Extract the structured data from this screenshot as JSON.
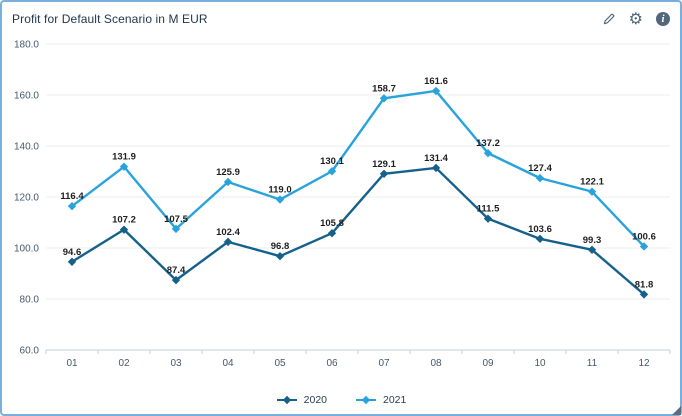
{
  "header": {
    "title": "Profit for Default Scenario in M EUR"
  },
  "colors": {
    "selection_border": "#79AEDE",
    "icon": "#51677C",
    "gridline": "#ECECEC",
    "axis": "#C9CFD6",
    "data_label": "#1F1F1F"
  },
  "icons": {
    "edit": "edit",
    "settings": "settings",
    "info": "info"
  },
  "chart_data": {
    "type": "line",
    "title": "Profit for Default Scenario in M EUR",
    "categories": [
      "01",
      "02",
      "03",
      "04",
      "05",
      "06",
      "07",
      "08",
      "09",
      "10",
      "11",
      "12"
    ],
    "series": [
      {
        "name": "2020",
        "color": "#16618C",
        "values": [
          94.6,
          107.2,
          87.4,
          102.4,
          96.8,
          105.8,
          129.1,
          131.4,
          111.5,
          103.6,
          99.3,
          81.8
        ]
      },
      {
        "name": "2021",
        "color": "#29A3DC",
        "values": [
          116.4,
          131.9,
          107.5,
          125.9,
          119.0,
          130.1,
          158.7,
          161.6,
          137.2,
          127.4,
          122.1,
          100.6
        ]
      }
    ],
    "ylim": [
      60,
      180
    ],
    "ytick_step": 20,
    "ytick_labels": [
      "180.0",
      "160.0",
      "140.0",
      "120.0",
      "100.0",
      "80.0",
      "60.0"
    ],
    "grid": true,
    "data_labels": true,
    "legend_position": "bottom"
  }
}
